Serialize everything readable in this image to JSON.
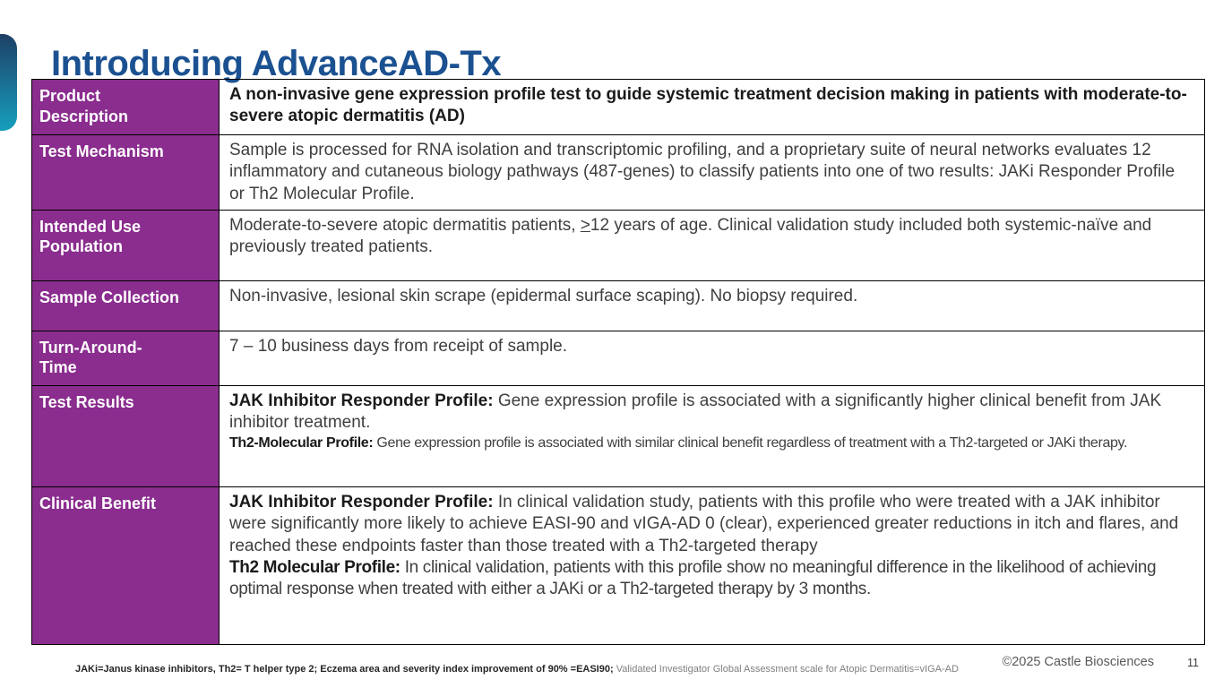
{
  "slide": {
    "title": "Introducing AdvanceAD-Tx",
    "page_number": "11",
    "copyright": "©2025 Castle Biosciences",
    "footnote_primary": "JAKi=Janus kinase inhibitors, Th2= T helper type 2; Eczema area and severity index improvement of 90% =EASI90; ",
    "footnote_secondary": "Validated Investigator Global Assessment scale for Atopic Dermatitis=vIGA-AD"
  },
  "colors": {
    "purple": "#8A2D8E",
    "title-blue": "#1B5191",
    "accent-top": "#1E4066",
    "accent-bottom": "#169FBE",
    "text": "#3F3F3F",
    "text-strong": "#1A1A1A",
    "footnote-strong": "#262626",
    "muted": "#7F7F7F",
    "copyright": "#595959",
    "border": "#000000"
  },
  "table": {
    "rows": [
      {
        "header": "Product\nDescription",
        "paragraphs": [
          {
            "segments": [
              {
                "text": "A non-invasive gene expression profile test to guide systemic treatment decision making in patients with moderate-to-severe atopic dermatitis (AD)",
                "bold": true
              }
            ]
          }
        ]
      },
      {
        "header": "Test Mechanism",
        "paragraphs": [
          {
            "segments": [
              {
                "text": "Sample is processed for RNA isolation and transcriptomic profiling, and a proprietary suite of neural networks evaluates 12 inflammatory and cutaneous biology pathways (487-genes) to classify patients into one of two results: JAKi Responder Profile or Th2 Molecular Profile."
              }
            ]
          }
        ]
      },
      {
        "header": "Intended Use\nPopulation",
        "paragraphs": [
          {
            "segments": [
              {
                "text": "Moderate-to-severe atopic dermatitis patients, "
              },
              {
                "text": ">",
                "underline": true
              },
              {
                "text": "12 years of age. Clinical validation study included both systemic-naïve and previously treated patients."
              }
            ]
          }
        ]
      },
      {
        "header": "Sample Collection",
        "paragraphs": [
          {
            "segments": [
              {
                "text": "Non-invasive, lesional skin scrape (epidermal surface scaping). No biopsy required."
              }
            ]
          }
        ]
      },
      {
        "header": "Turn-Around-\nTime",
        "paragraphs": [
          {
            "segments": [
              {
                "text": "7 – 10 business days from receipt of sample."
              }
            ]
          }
        ]
      },
      {
        "header": "Test Results",
        "paragraphs": [
          {
            "segments": [
              {
                "text": "JAK Inhibitor Responder Profile: ",
                "bold": true
              },
              {
                "text": "Gene expression profile is associated with a significantly higher clinical benefit from JAK inhibitor treatment."
              }
            ]
          },
          {
            "small": true,
            "condensed": true,
            "segments": [
              {
                "text": "Th2-Molecular Profile: ",
                "bold": true
              },
              {
                "text": "Gene expression profile is associated with similar clinical benefit regardless of treatment with a Th2-targeted or JAKi therapy."
              }
            ]
          }
        ]
      },
      {
        "header": "Clinical Benefit",
        "paragraphs": [
          {
            "segments": [
              {
                "text": "JAK Inhibitor Responder Profile: ",
                "bold": true
              },
              {
                "text": "In clinical validation study, patients with this profile who were treated with a JAK inhibitor were significantly more likely to achieve EASI-90 and vIGA-AD 0 (clear), experienced greater reductions in itch and flares, and reached these endpoints faster than those treated with a Th2-targeted therapy"
              }
            ]
          },
          {
            "condensed": true,
            "segments": [
              {
                "text": "Th2 Molecular Profile: ",
                "bold": true
              },
              {
                "text": "In clinical validation, patients with this profile show no meaningful difference in the likelihood of achieving optimal response when treated with either a JAKi or a Th2-targeted therapy by 3 months."
              }
            ]
          }
        ]
      }
    ]
  }
}
